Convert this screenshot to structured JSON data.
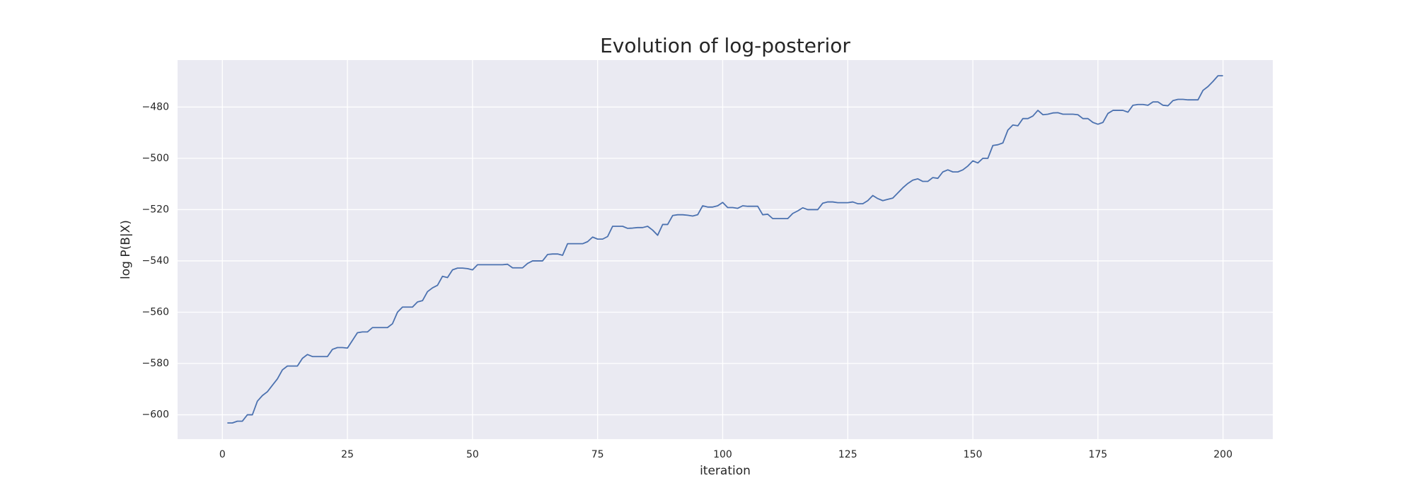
{
  "chart_data": {
    "type": "line",
    "title": "Evolution of log-posterior",
    "xlabel": "iteration",
    "ylabel": "log P(B|X)",
    "color": "#4c72b0",
    "background": "#eaeaf2",
    "grid": true,
    "xlim": [
      -8.95,
      209.95
    ],
    "ylim": [
      -609.5,
      -461.7
    ],
    "xticks": [
      0,
      25,
      50,
      75,
      100,
      125,
      150,
      175,
      200
    ],
    "yticks": [
      {
        "value": -600,
        "label": "−600"
      },
      {
        "value": -580,
        "label": "−580"
      },
      {
        "value": -560,
        "label": "−560"
      },
      {
        "value": -540,
        "label": "−540"
      },
      {
        "value": -520,
        "label": "−520"
      },
      {
        "value": -500,
        "label": "−500"
      },
      {
        "value": -480,
        "label": "−480"
      }
    ],
    "x": [
      1,
      2,
      3,
      4,
      5,
      6,
      7,
      8,
      9,
      10,
      11,
      12,
      13,
      14,
      15,
      16,
      17,
      18,
      19,
      20,
      21,
      22,
      23,
      24,
      25,
      26,
      27,
      28,
      29,
      30,
      31,
      32,
      33,
      34,
      35,
      36,
      37,
      38,
      39,
      40,
      41,
      42,
      43,
      44,
      45,
      46,
      47,
      48,
      49,
      50,
      51,
      52,
      53,
      54,
      55,
      56,
      57,
      58,
      59,
      60,
      61,
      62,
      63,
      64,
      65,
      66,
      67,
      68,
      69,
      70,
      71,
      72,
      73,
      74,
      75,
      76,
      77,
      78,
      79,
      80,
      81,
      82,
      83,
      84,
      85,
      86,
      87,
      88,
      89,
      90,
      91,
      92,
      93,
      94,
      95,
      96,
      97,
      98,
      99,
      100,
      101,
      102,
      103,
      104,
      105,
      106,
      107,
      108,
      109,
      110,
      111,
      112,
      113,
      114,
      115,
      116,
      117,
      118,
      119,
      120,
      121,
      122,
      123,
      124,
      125,
      126,
      127,
      128,
      129,
      130,
      131,
      132,
      133,
      134,
      135,
      136,
      137,
      138,
      139,
      140,
      141,
      142,
      143,
      144,
      145,
      146,
      147,
      148,
      149,
      150,
      151,
      152,
      153,
      154,
      155,
      156,
      157,
      158,
      159,
      160,
      161,
      162,
      163,
      164,
      165,
      166,
      167,
      168,
      169,
      170,
      171,
      172,
      173,
      174,
      175,
      176,
      177,
      178,
      179,
      180,
      181,
      182,
      183,
      184,
      185,
      186,
      187,
      188,
      189,
      190,
      191,
      192,
      193,
      194,
      195,
      196,
      197,
      198,
      199,
      200
    ],
    "values": [
      -603.2,
      -603.2,
      -602.5,
      -602.5,
      -600,
      -600,
      -594.7,
      -592.5,
      -591,
      -588.5,
      -586,
      -582.5,
      -581,
      -581,
      -581,
      -578,
      -576.5,
      -577.3,
      -577.3,
      -577.3,
      -577.3,
      -574.5,
      -573.8,
      -573.8,
      -574,
      -571,
      -568,
      -567.7,
      -567.7,
      -566,
      -566,
      -566,
      -566,
      -564.5,
      -560,
      -558,
      -558,
      -558,
      -556,
      -555.5,
      -552,
      -550.5,
      -549.5,
      -546,
      -546.5,
      -543.5,
      -542.8,
      -542.8,
      -543,
      -543.5,
      -541.5,
      -541.5,
      -541.5,
      -541.5,
      -541.5,
      -541.5,
      -541.3,
      -542.7,
      -542.7,
      -542.7,
      -541,
      -540,
      -540,
      -540,
      -537.5,
      -537.3,
      -537.3,
      -537.8,
      -533.3,
      -533.3,
      -533.3,
      -533.3,
      -532.5,
      -530.7,
      -531.5,
      -531.5,
      -530.5,
      -526.5,
      -526.5,
      -526.5,
      -527.3,
      -527.2,
      -527,
      -527,
      -526.5,
      -528,
      -530,
      -525.8,
      -525.8,
      -522.3,
      -522,
      -522,
      -522.2,
      -522.5,
      -522,
      -518.5,
      -519,
      -519,
      -518.5,
      -517.2,
      -519.2,
      -519.2,
      -519.5,
      -518.5,
      -518.7,
      -518.7,
      -518.7,
      -522,
      -521.8,
      -523.5,
      -523.5,
      -523.5,
      -523.5,
      -521.5,
      -520.5,
      -519.3,
      -520,
      -520,
      -520,
      -517.5,
      -517,
      -517,
      -517.3,
      -517.3,
      -517.3,
      -517,
      -517.7,
      -517.7,
      -516.5,
      -514.5,
      -515.7,
      -516.5,
      -516,
      -515.5,
      -513.5,
      -511.5,
      -509.8,
      -508.5,
      -508,
      -509,
      -509,
      -507.5,
      -507.8,
      -505.3,
      -504.5,
      -505.3,
      -505.3,
      -504.5,
      -503,
      -501,
      -501.8,
      -500,
      -500,
      -495,
      -494.7,
      -494,
      -489,
      -487,
      -487.3,
      -484.5,
      -484.5,
      -483.5,
      -481.3,
      -483,
      -482.8,
      -482.3,
      -482.2,
      -482.8,
      -482.8,
      -482.8,
      -483,
      -484.5,
      -484.5,
      -486,
      -486.7,
      -486,
      -482.5,
      -481.3,
      -481.3,
      -481.3,
      -482,
      -479.3,
      -479,
      -479,
      -479.3,
      -478,
      -478,
      -479.3,
      -479.5,
      -477.5,
      -477,
      -477,
      -477.2,
      -477.2,
      -477.2,
      -473.5,
      -472,
      -470,
      -467.8,
      -467.8
    ]
  }
}
